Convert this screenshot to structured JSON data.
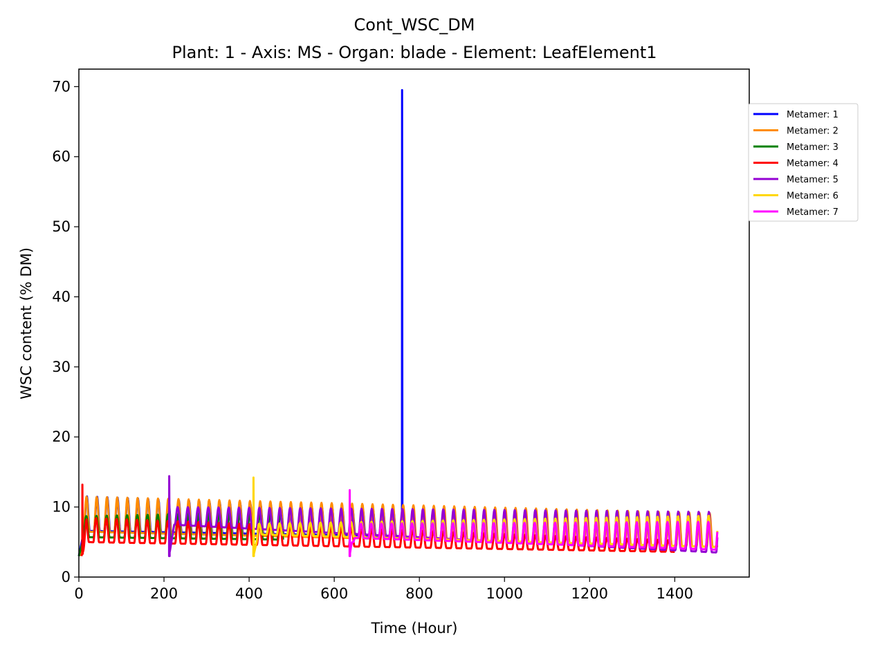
{
  "chart_data": {
    "type": "line",
    "title": "Cont_WSC_DM",
    "subtitle": "Plant: 1 - Axis: MS - Organ: blade - Element: LeafElement1",
    "xlabel": "Time (Hour)",
    "ylabel": "WSC content (% DM)",
    "xlim": [
      0,
      1575
    ],
    "ylim": [
      0,
      72.5
    ],
    "xticks": [
      0,
      200,
      400,
      600,
      800,
      1000,
      1200,
      1400
    ],
    "yticks": [
      0,
      10,
      20,
      30,
      40,
      50,
      60,
      70
    ],
    "grid": false,
    "legend_position": "right, outside plot",
    "series": [
      {
        "name": "Metamer: 1",
        "color": "#0000ff",
        "start": 0,
        "end": 760,
        "base": [
          6.0,
          4.5
        ],
        "amp": [
          5.0,
          2.5
        ],
        "lift": 0.6,
        "spikes": [
          [
            759,
            69.5
          ]
        ]
      },
      {
        "name": "Metamer: 2",
        "color": "#ff8c00",
        "start": 2,
        "end": 1500,
        "base": [
          6.0,
          3.8
        ],
        "amp": [
          5.0,
          4.8
        ],
        "lift": 0.5,
        "spikes": []
      },
      {
        "name": "Metamer: 3",
        "color": "#008000",
        "start": 0,
        "end": 480,
        "base": [
          5.5,
          4.4
        ],
        "amp": [
          3.0,
          6.0
        ],
        "lift": 0.2,
        "spikes": []
      },
      {
        "name": "Metamer: 4",
        "color": "#ff0000",
        "start": 6,
        "end": 1400,
        "base": [
          5.0,
          3.5
        ],
        "amp": [
          3.5,
          1.5
        ],
        "lift": 0,
        "spikes": [
          [
            8,
            13.2
          ]
        ]
      },
      {
        "name": "Metamer: 5",
        "color": "#9400d3",
        "start": 212,
        "end": 1500,
        "base": [
          7.5,
          3.5
        ],
        "amp": [
          2.5,
          5.8
        ],
        "lift": 0,
        "spikes": [
          [
            212,
            14.4
          ]
        ]
      },
      {
        "name": "Metamer: 6",
        "color": "#ffd700",
        "start": 410,
        "end": 1500,
        "base": [
          5.8,
          4.0
        ],
        "amp": [
          1.5,
          4.5
        ],
        "lift": 0.3,
        "spikes": [
          [
            410,
            14.2
          ]
        ]
      },
      {
        "name": "Metamer: 7",
        "color": "#ff00ff",
        "start": 636,
        "end": 1500,
        "base": [
          5.5,
          3.8
        ],
        "amp": [
          2.0,
          4.0
        ],
        "lift": 0.1,
        "spikes": [
          [
            636,
            12.4
          ]
        ]
      }
    ]
  }
}
